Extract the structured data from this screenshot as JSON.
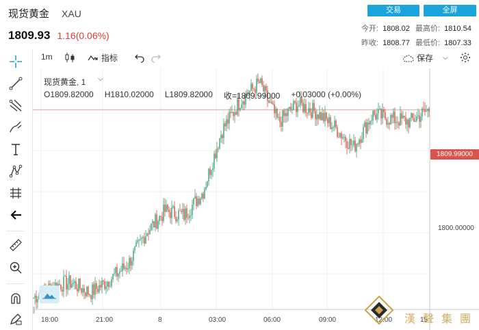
{
  "header": {
    "instrument_name": "现货黄金",
    "instrument_code": "XAU",
    "price": "1809.93",
    "change": "1.16(0.06%)",
    "buttons": {
      "trade": "交易",
      "fullscreen": "全屏"
    },
    "stats": {
      "open_label": "今开:",
      "open": "1808.02",
      "high_label": "最高价:",
      "high": "1810.54",
      "prev_close_label": "昨收:",
      "prev_close": "1808.77",
      "low_label": "最低价:",
      "low": "1807.33"
    }
  },
  "toolbar": {
    "interval": "1m",
    "indicators": "指标",
    "save": "保存"
  },
  "legend": {
    "title": "现货黄金, 1",
    "open": "O1809.82000",
    "high": "H1810.02000",
    "low": "L1809.82000",
    "close": "收=1809.99000",
    "change": "+0.03000 (+0.00%)"
  },
  "price_tag": "1809.99000",
  "y_tick": "1800.00000",
  "x_ticks": [
    "18:00",
    "21:00",
    "8",
    "03:00",
    "06:00",
    "09:00",
    "12:00",
    "15"
  ],
  "watermark": "漢聲集團",
  "colors": {
    "accent": "#1ba3dc",
    "down": "#e03c31",
    "tag": "#d9534f",
    "candle_up": "#3a9e7a",
    "candle_down": "#c8553d"
  },
  "chart_data": {
    "type": "line",
    "description_series": "1-minute candlestick, rendered as close path",
    "x": [
      "18:00",
      "19:30",
      "21:00",
      "22:30",
      "00:00",
      "01:30",
      "03:00",
      "04:30",
      "05:30",
      "06:00",
      "06:30",
      "07:00",
      "07:30",
      "08:00",
      "09:00",
      "10:00",
      "11:00",
      "11:30",
      "12:00",
      "13:00",
      "14:00",
      "15:00"
    ],
    "y": [
      1794.0,
      1795.0,
      1795.3,
      1794.4,
      1795.5,
      1796.8,
      1799.6,
      1801.4,
      1801.0,
      1803.0,
      1808.2,
      1810.8,
      1812.3,
      1808.9,
      1810.5,
      1809.8,
      1808.5,
      1806.8,
      1809.6,
      1809.2,
      1809.0,
      1809.99
    ],
    "ylim": [
      1793.0,
      1813.5
    ],
    "last_price": 1809.99
  }
}
